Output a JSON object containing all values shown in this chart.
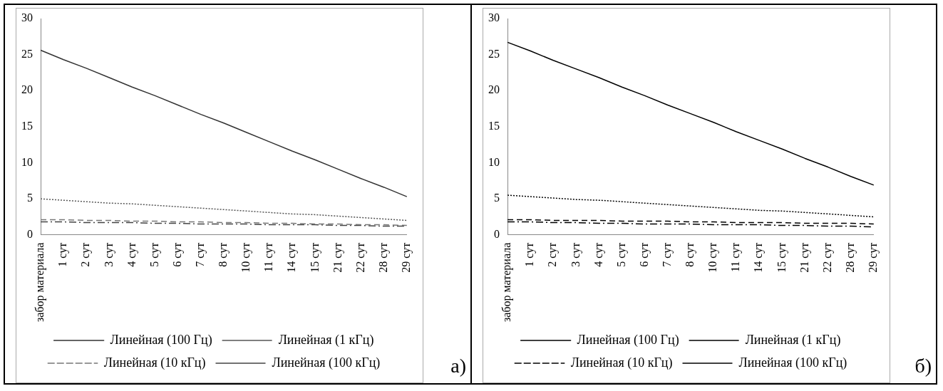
{
  "chart_data": [
    {
      "type": "line",
      "categories": [
        "забор материала",
        "1 сут",
        "2 сут",
        "3 сут",
        "4 сут",
        "5 сут",
        "6 сут",
        "7 сут",
        "8 сут",
        "10 сут",
        "11 сут",
        "14 сут",
        "15 сут",
        "21 сут",
        "22 сут",
        "28 сут",
        "29 сут"
      ],
      "ylim": [
        0,
        30
      ],
      "yticks": [
        0,
        5,
        10,
        15,
        20,
        25,
        30
      ],
      "grid": false,
      "legend": "bottom",
      "marker": "none",
      "annotations": [
        "а)"
      ],
      "series": [
        {
          "name": "Линейная (100 Гц)",
          "color": "#333333",
          "line_style": "solid",
          "values": [
            25.6,
            24.3,
            23.1,
            21.8,
            20.5,
            19.3,
            18.0,
            16.7,
            15.5,
            14.2,
            12.9,
            11.6,
            10.4,
            9.1,
            7.8,
            6.6,
            5.3
          ]
        },
        {
          "name": "Линейная (1 кГц)",
          "color": "#555555",
          "line_style": "dotted",
          "values": [
            5.0,
            4.8,
            4.6,
            4.4,
            4.3,
            4.1,
            3.9,
            3.7,
            3.5,
            3.3,
            3.1,
            2.9,
            2.8,
            2.6,
            2.4,
            2.2,
            2.0
          ]
        },
        {
          "name": "Линейная (10 кГц)",
          "color": "#777777",
          "line_style": "dashed",
          "values": [
            2.1,
            2.1,
            2.0,
            2.0,
            1.9,
            1.9,
            1.8,
            1.8,
            1.7,
            1.7,
            1.6,
            1.6,
            1.5,
            1.5,
            1.4,
            1.4,
            1.3
          ]
        },
        {
          "name": "Линейная (100 кГц)",
          "color": "#444444",
          "line_style": "dashdot",
          "values": [
            1.8,
            1.8,
            1.7,
            1.7,
            1.7,
            1.6,
            1.6,
            1.5,
            1.5,
            1.5,
            1.4,
            1.4,
            1.4,
            1.3,
            1.3,
            1.2,
            1.2
          ]
        }
      ]
    },
    {
      "type": "line",
      "categories": [
        "забор материала",
        "1 сут",
        "2 сут",
        "3 сут",
        "4 сут",
        "5 сут",
        "6 сут",
        "7 сут",
        "8 сут",
        "10 сут",
        "11 сут",
        "14 сут",
        "15 сут",
        "21 сут",
        "22 сут",
        "28 сут",
        "29 сут"
      ],
      "ylim": [
        0,
        30
      ],
      "yticks": [
        0,
        5,
        10,
        15,
        20,
        25,
        30
      ],
      "grid": false,
      "legend": "bottom",
      "marker": "none",
      "annotations": [
        "б)"
      ],
      "series": [
        {
          "name": "Линейная (100 Гц)",
          "color": "#000000",
          "line_style": "solid",
          "values": [
            26.7,
            25.5,
            24.2,
            23.0,
            21.8,
            20.5,
            19.3,
            18.0,
            16.8,
            15.6,
            14.3,
            13.1,
            11.9,
            10.6,
            9.4,
            8.1,
            6.9
          ]
        },
        {
          "name": "Линейная (1 кГц)",
          "color": "#000000",
          "line_style": "dotted",
          "values": [
            5.5,
            5.3,
            5.1,
            4.9,
            4.8,
            4.6,
            4.4,
            4.2,
            4.0,
            3.8,
            3.6,
            3.4,
            3.3,
            3.1,
            2.9,
            2.7,
            2.5
          ]
        },
        {
          "name": "Линейная (10 кГц)",
          "color": "#000000",
          "line_style": "dashed",
          "values": [
            2.1,
            2.1,
            2.0,
            2.0,
            2.0,
            1.9,
            1.9,
            1.9,
            1.8,
            1.8,
            1.7,
            1.7,
            1.7,
            1.6,
            1.6,
            1.6,
            1.5
          ]
        },
        {
          "name": "Линейная (100 кГц)",
          "color": "#000000",
          "line_style": "dashdot",
          "values": [
            1.8,
            1.8,
            1.7,
            1.7,
            1.6,
            1.6,
            1.5,
            1.5,
            1.5,
            1.4,
            1.4,
            1.4,
            1.3,
            1.3,
            1.2,
            1.2,
            1.1
          ]
        }
      ]
    }
  ]
}
